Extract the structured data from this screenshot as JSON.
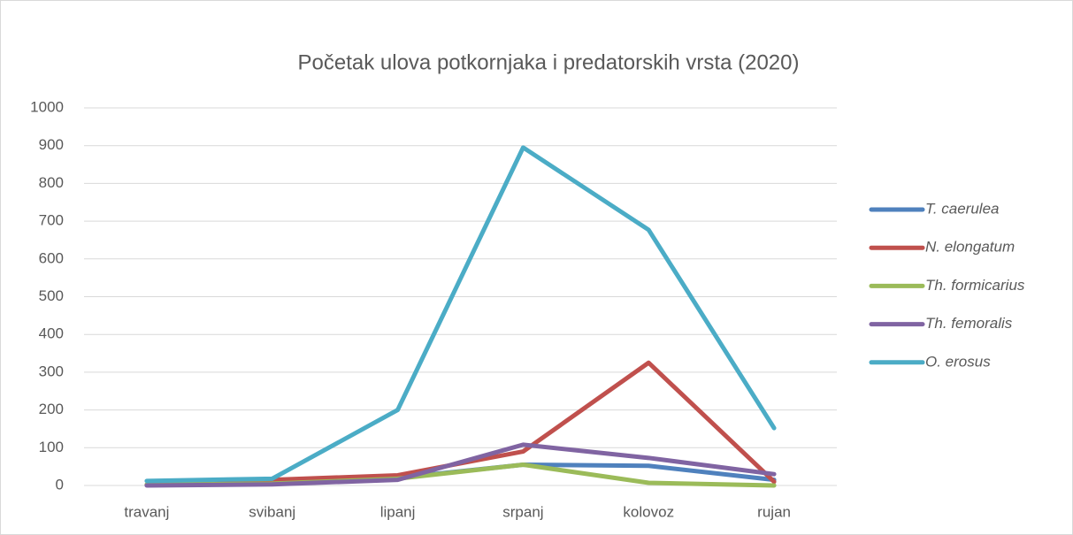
{
  "chart_data": {
    "type": "line",
    "title": "Početak ulova potkornjaka i predatorskih vrsta  (2020)",
    "categories": [
      "travanj",
      "svibanj",
      "lipanj",
      "srpanj",
      "kolovoz",
      "rujan"
    ],
    "series": [
      {
        "name": "T. caerulea",
        "color": "#4f81bd",
        "values": [
          2,
          5,
          20,
          55,
          52,
          15
        ]
      },
      {
        "name": "N. elongatum",
        "color": "#c0504d",
        "values": [
          2,
          15,
          27,
          90,
          325,
          10
        ]
      },
      {
        "name": "Th. formicarius",
        "color": "#9bbb59",
        "values": [
          2,
          5,
          18,
          55,
          7,
          0
        ]
      },
      {
        "name": "Th. femoralis",
        "color": "#8064a2",
        "values": [
          0,
          3,
          15,
          108,
          73,
          30
        ]
      },
      {
        "name": "O. erosus",
        "color": "#4bacc6",
        "values": [
          12,
          18,
          200,
          895,
          677,
          152
        ]
      }
    ],
    "ylim": [
      0,
      1000
    ],
    "yticks": [
      0,
      100,
      200,
      300,
      400,
      500,
      600,
      700,
      800,
      900,
      1000
    ],
    "grid": true,
    "legend": "right"
  }
}
